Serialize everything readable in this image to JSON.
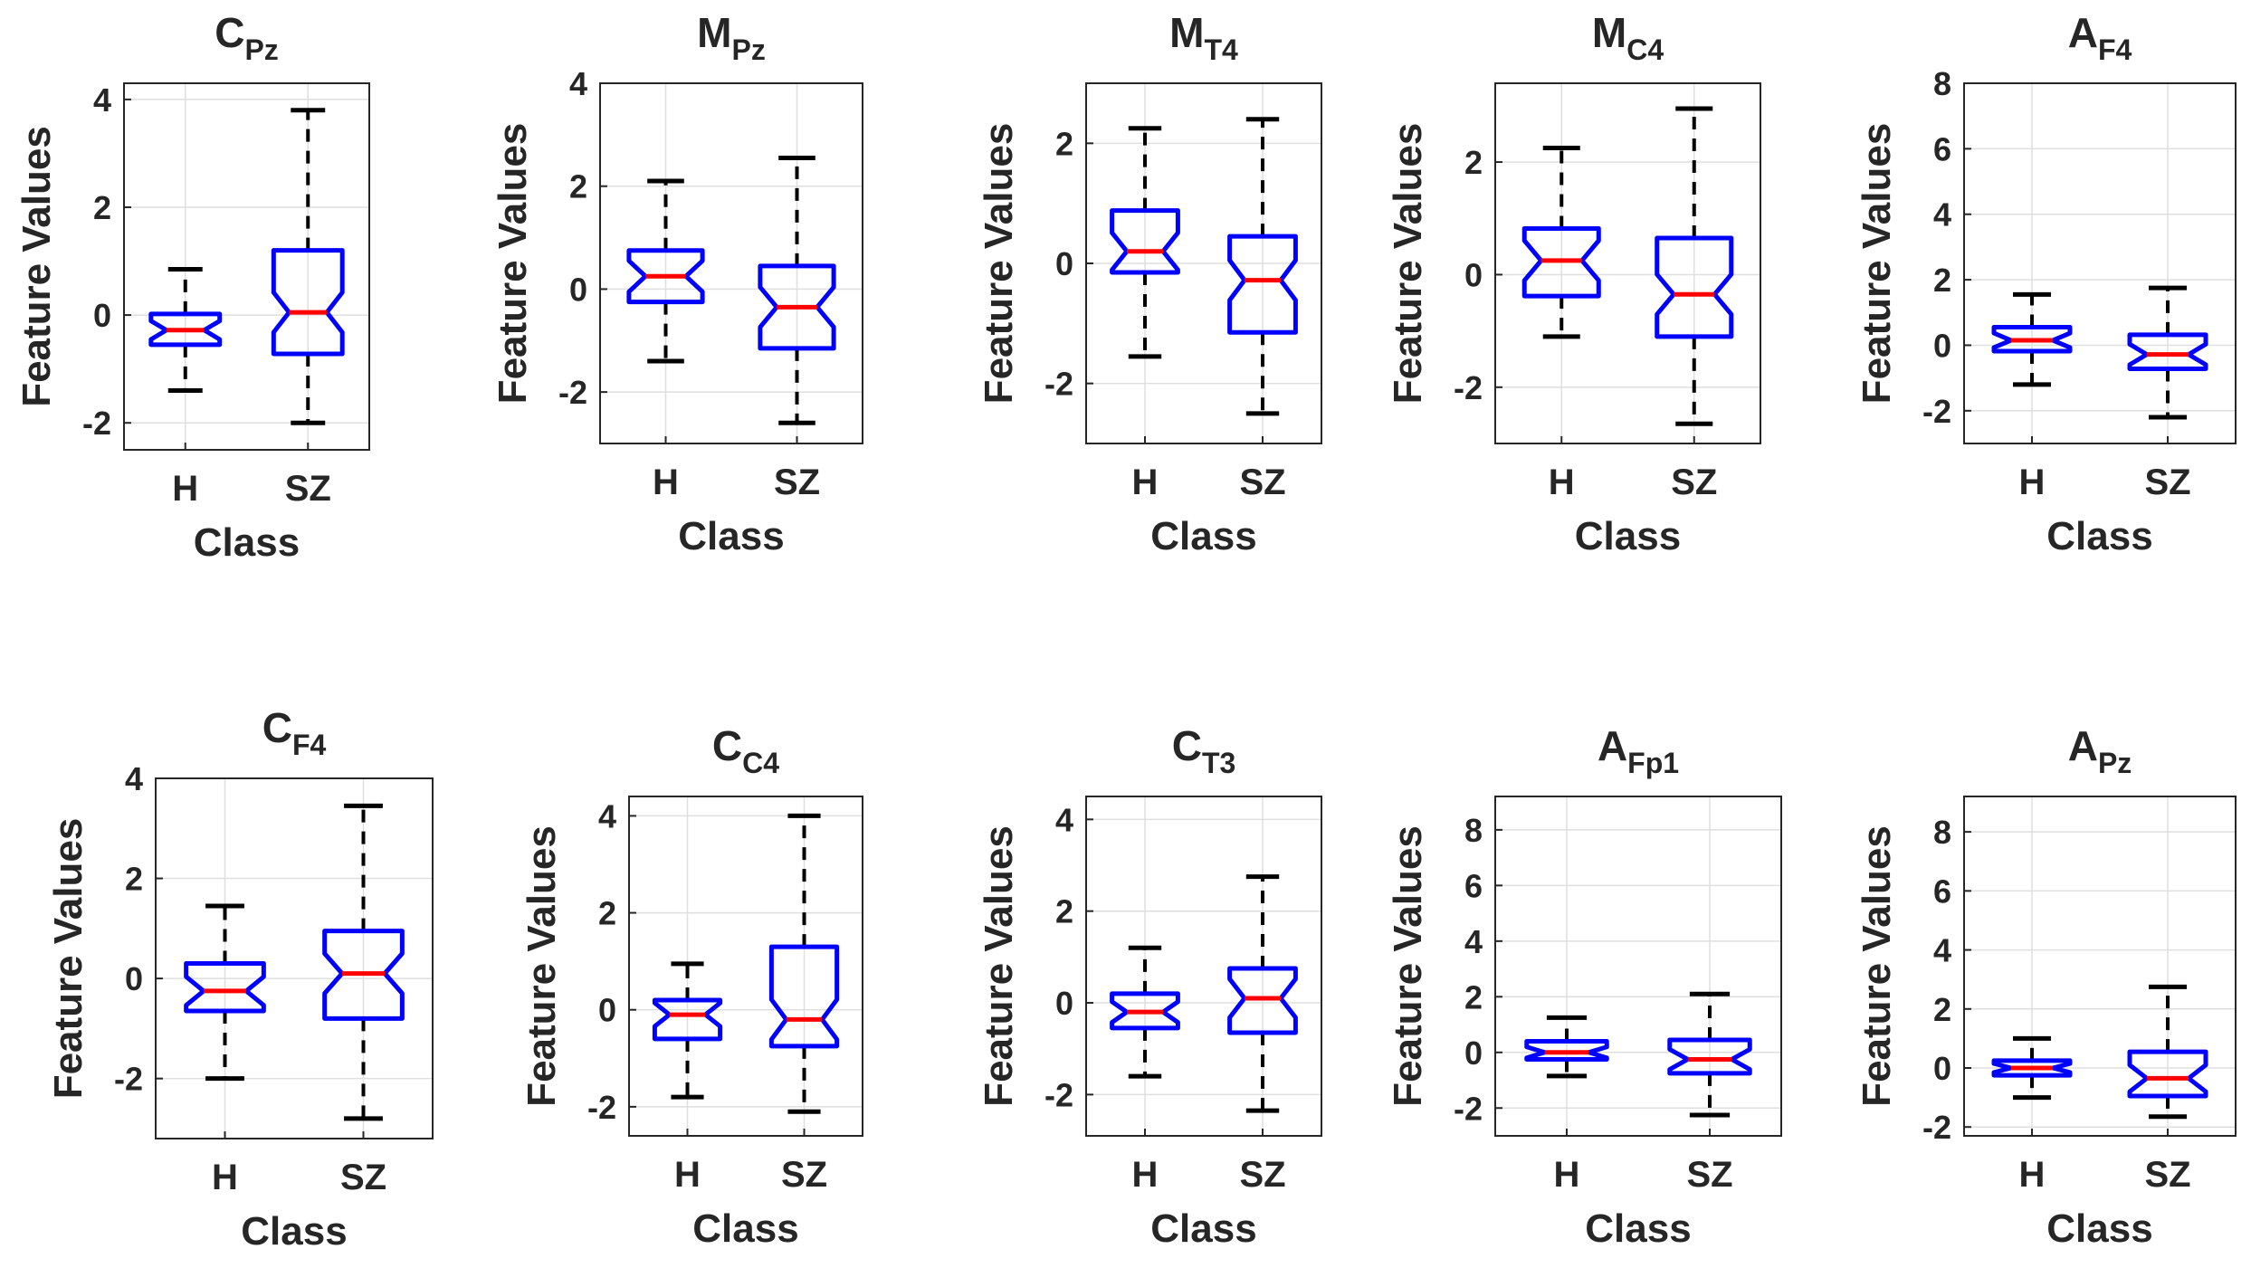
{
  "colors": {
    "box": "#0000ff",
    "median": "#ff0000",
    "whisker": "#000000",
    "axis": "#262626",
    "grid": "#dfdfdf"
  },
  "chart_data": [
    {
      "type": "box",
      "title_base": "C",
      "title_sub": "Pz",
      "xlabel": "Class",
      "ylabel": "Feature Values",
      "categories": [
        "H",
        "SZ"
      ],
      "ylim": [
        -2.5,
        4.3
      ],
      "yticks": [
        -2,
        0,
        2,
        4
      ],
      "grid": true,
      "notched": true,
      "boxes": [
        {
          "min": -1.4,
          "q1": -0.55,
          "median": -0.28,
          "q3": 0.02,
          "max": 0.85
        },
        {
          "min": -2.0,
          "q1": -0.72,
          "median": 0.05,
          "q3": 1.2,
          "max": 3.8
        }
      ]
    },
    {
      "type": "box",
      "title_base": "M",
      "title_sub": "Pz",
      "xlabel": "Class",
      "ylabel": "Feature Values",
      "categories": [
        "H",
        "SZ"
      ],
      "ylim": [
        -3,
        4
      ],
      "yticks": [
        -2,
        0,
        2,
        4
      ],
      "grid": true,
      "notched": true,
      "boxes": [
        {
          "min": -1.4,
          "q1": -0.25,
          "median": 0.25,
          "q3": 0.75,
          "max": 2.1
        },
        {
          "min": -2.6,
          "q1": -1.15,
          "median": -0.35,
          "q3": 0.45,
          "max": 2.55
        }
      ]
    },
    {
      "type": "box",
      "title_base": "M",
      "title_sub": "T4",
      "xlabel": "Class",
      "ylabel": "Feature Values",
      "categories": [
        "H",
        "SZ"
      ],
      "ylim": [
        -3,
        3
      ],
      "yticks": [
        -2,
        0,
        2
      ],
      "grid": true,
      "notched": true,
      "boxes": [
        {
          "min": -1.55,
          "q1": -0.15,
          "median": 0.2,
          "q3": 0.88,
          "max": 2.25
        },
        {
          "min": -2.5,
          "q1": -1.15,
          "median": -0.28,
          "q3": 0.45,
          "max": 2.4
        }
      ]
    },
    {
      "type": "box",
      "title_base": "M",
      "title_sub": "C4",
      "xlabel": "Class",
      "ylabel": "Feature Values",
      "categories": [
        "H",
        "SZ"
      ],
      "ylim": [
        -3,
        3.4
      ],
      "yticks": [
        -2,
        0,
        2
      ],
      "grid": true,
      "notched": true,
      "boxes": [
        {
          "min": -1.1,
          "q1": -0.38,
          "median": 0.25,
          "q3": 0.82,
          "max": 2.25
        },
        {
          "min": -2.65,
          "q1": -1.1,
          "median": -0.35,
          "q3": 0.65,
          "max": 2.95
        }
      ]
    },
    {
      "type": "box",
      "title_base": "A",
      "title_sub": "F4",
      "xlabel": "Class",
      "ylabel": "Feature Values",
      "categories": [
        "H",
        "SZ"
      ],
      "ylim": [
        -3,
        8
      ],
      "yticks": [
        -2,
        0,
        2,
        4,
        6,
        8
      ],
      "grid": true,
      "notched": true,
      "boxes": [
        {
          "min": -1.2,
          "q1": -0.18,
          "median": 0.15,
          "q3": 0.55,
          "max": 1.55
        },
        {
          "min": -2.2,
          "q1": -0.72,
          "median": -0.28,
          "q3": 0.32,
          "max": 1.75
        }
      ]
    },
    {
      "type": "box",
      "title_base": "C",
      "title_sub": "F4",
      "xlabel": "Class",
      "ylabel": "Feature Values",
      "categories": [
        "H",
        "SZ"
      ],
      "ylim": [
        -3.2,
        4
      ],
      "yticks": [
        -2,
        0,
        2,
        4
      ],
      "grid": true,
      "notched": true,
      "boxes": [
        {
          "min": -2.0,
          "q1": -0.65,
          "median": -0.25,
          "q3": 0.3,
          "max": 1.45
        },
        {
          "min": -2.8,
          "q1": -0.8,
          "median": 0.1,
          "q3": 0.95,
          "max": 3.45
        }
      ]
    },
    {
      "type": "box",
      "title_base": "C",
      "title_sub": "C4",
      "xlabel": "Class",
      "ylabel": "Feature Values",
      "categories": [
        "H",
        "SZ"
      ],
      "ylim": [
        -2.6,
        4.4
      ],
      "yticks": [
        -2,
        0,
        2,
        4
      ],
      "grid": true,
      "notched": true,
      "boxes": [
        {
          "min": -1.8,
          "q1": -0.6,
          "median": -0.1,
          "q3": 0.2,
          "max": 0.95
        },
        {
          "min": -2.1,
          "q1": -0.75,
          "median": -0.2,
          "q3": 1.3,
          "max": 4.0
        }
      ]
    },
    {
      "type": "box",
      "title_base": "C",
      "title_sub": "T3",
      "xlabel": "Class",
      "ylabel": "Feature Values",
      "categories": [
        "H",
        "SZ"
      ],
      "ylim": [
        -2.9,
        4.5
      ],
      "yticks": [
        -2,
        0,
        2,
        4
      ],
      "grid": true,
      "notched": true,
      "boxes": [
        {
          "min": -1.6,
          "q1": -0.55,
          "median": -0.2,
          "q3": 0.2,
          "max": 1.2
        },
        {
          "min": -2.35,
          "q1": -0.65,
          "median": 0.1,
          "q3": 0.75,
          "max": 2.75
        }
      ]
    },
    {
      "type": "box",
      "title_base": "A",
      "title_sub": "Fp1",
      "xlabel": "Class",
      "ylabel": "Feature Values",
      "categories": [
        "H",
        "SZ"
      ],
      "ylim": [
        -3,
        9.2
      ],
      "yticks": [
        -2,
        0,
        2,
        4,
        6,
        8
      ],
      "grid": true,
      "notched": true,
      "boxes": [
        {
          "min": -0.85,
          "q1": -0.25,
          "median": 0.0,
          "q3": 0.4,
          "max": 1.25
        },
        {
          "min": -2.25,
          "q1": -0.75,
          "median": -0.25,
          "q3": 0.45,
          "max": 2.1
        }
      ]
    },
    {
      "type": "box",
      "title_base": "A",
      "title_sub": "Pz",
      "xlabel": "Class",
      "ylabel": "Feature Values",
      "categories": [
        "H",
        "SZ"
      ],
      "ylim": [
        -2.3,
        9.2
      ],
      "yticks": [
        -2,
        0,
        2,
        4,
        6,
        8
      ],
      "grid": true,
      "notched": true,
      "boxes": [
        {
          "min": -1.0,
          "q1": -0.25,
          "median": 0.0,
          "q3": 0.25,
          "max": 1.0
        },
        {
          "min": -1.65,
          "q1": -0.95,
          "median": -0.35,
          "q3": 0.55,
          "max": 2.75
        }
      ]
    }
  ]
}
